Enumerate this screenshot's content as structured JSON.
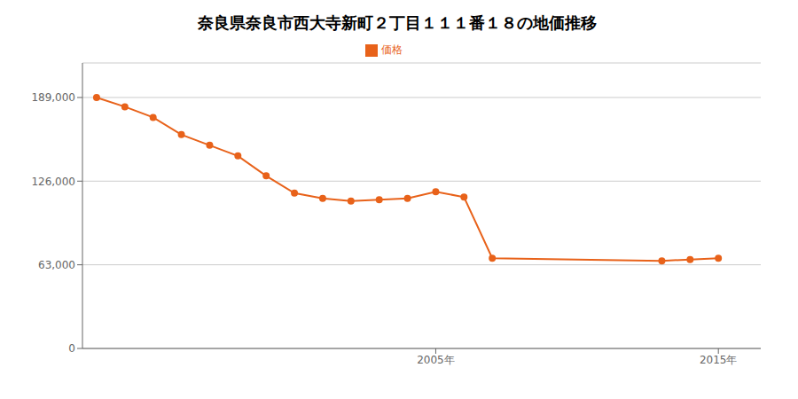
{
  "chart_data": {
    "type": "line",
    "title": "奈良県奈良市西大寺新町２丁目１１１番１８の地価推移",
    "x": [
      1993,
      1994,
      1995,
      1996,
      1997,
      1998,
      1999,
      2000,
      2001,
      2002,
      2003,
      2004,
      2005,
      2006,
      2007,
      2013,
      2014,
      2015
    ],
    "series": [
      {
        "name": "価格",
        "color": "#e8621a",
        "marker": "circle",
        "values": [
          189000,
          182000,
          174000,
          161000,
          153000,
          145000,
          130000,
          117000,
          113000,
          111000,
          112000,
          113000,
          118000,
          114000,
          68000,
          66000,
          67000,
          68000
        ]
      }
    ],
    "xlim": [
      1992.5,
      2016.5
    ],
    "xticks": [
      {
        "value": 2005,
        "label": "2005年"
      },
      {
        "value": 2015,
        "label": "2015年"
      }
    ],
    "ylim": [
      0,
      215000
    ],
    "yticks": [
      0,
      {
        "value": 63000,
        "label": "63,000"
      },
      {
        "value": 126000,
        "label": "126,000"
      },
      {
        "value": 189000,
        "label": "189,000"
      }
    ],
    "grid": "y",
    "legend": "top"
  }
}
